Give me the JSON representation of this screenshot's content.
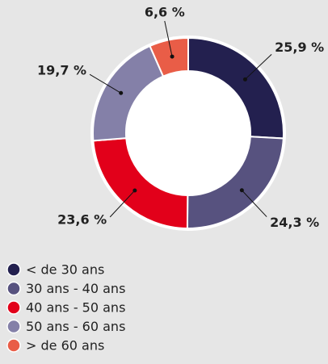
{
  "chart_data": {
    "type": "donut",
    "categories": [
      "< de 30 ans",
      "30 ans - 40 ans",
      "40 ans - 50 ans",
      "50 ans - 60 ans",
      "> de 60 ans"
    ],
    "values": [
      25.9,
      24.3,
      23.6,
      19.7,
      6.6
    ],
    "value_labels": [
      "25,9 %",
      "24,3 %",
      "23,6 %",
      "19,7 %",
      "6,6 %"
    ],
    "colors": [
      "#23204f",
      "#57527f",
      "#e2001a",
      "#8480a8",
      "#e95d47"
    ],
    "legend": "bottom-left"
  }
}
